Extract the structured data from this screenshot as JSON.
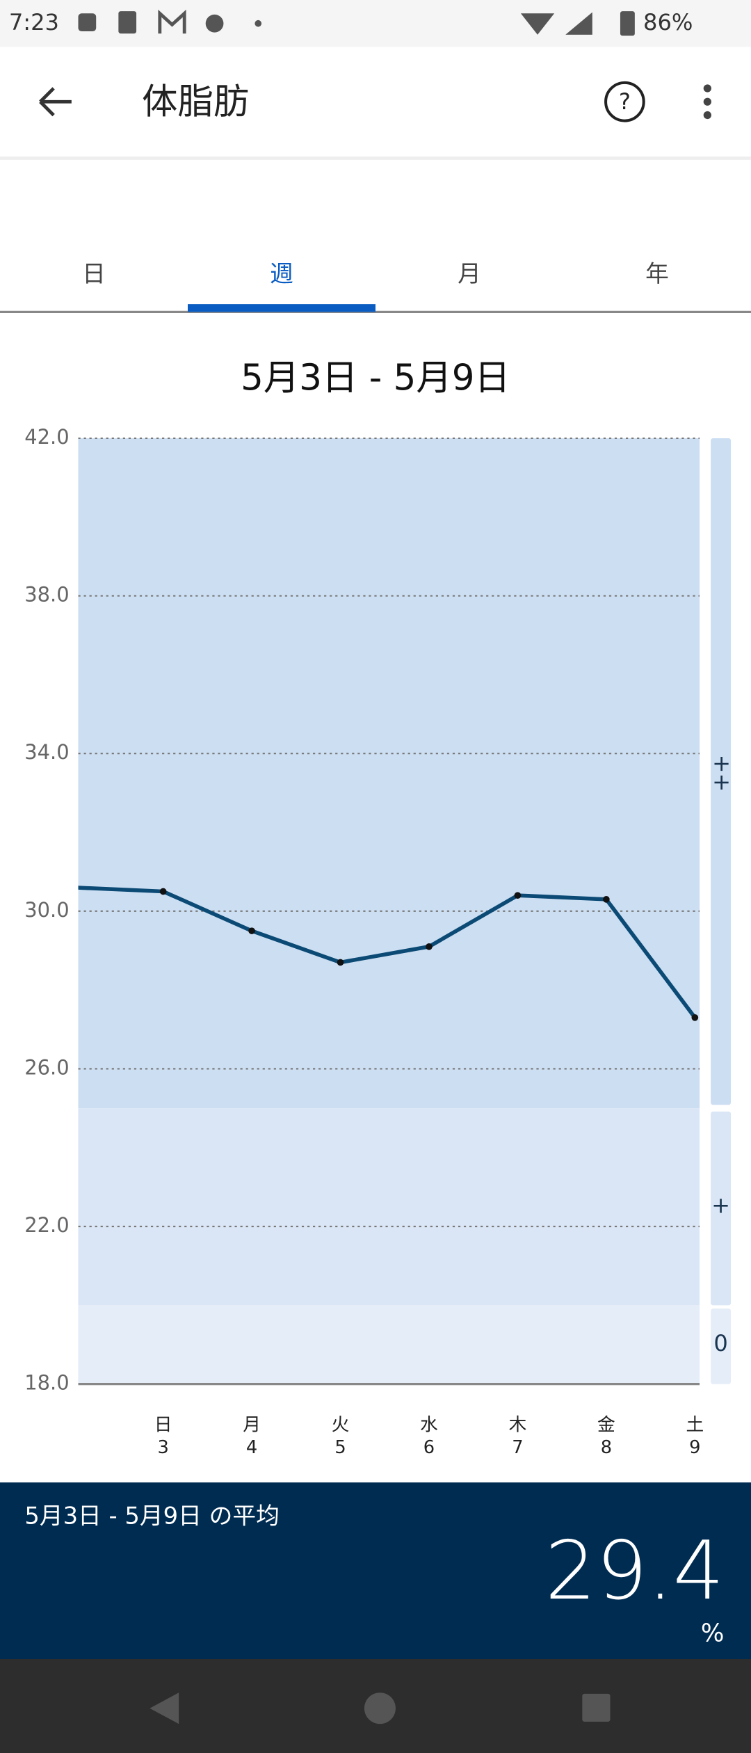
{
  "status_bar": {
    "time": "7:23",
    "battery": "86%"
  },
  "app_bar": {
    "title": "体脂肪"
  },
  "tabs": [
    "日",
    "週",
    "月",
    "年"
  ],
  "chart_data": {
    "type": "line",
    "title": "5月3日 - 5月9日",
    "categories": [
      null,
      "日",
      "月",
      "火",
      "水",
      "木",
      "金",
      "土"
    ],
    "days": [
      null,
      "3",
      "4",
      "5",
      "6",
      "7",
      "8",
      "9"
    ],
    "series": [
      {
        "color": "#0b4a75",
        "values": [
          30.6,
          30.5,
          29.5,
          28.7,
          29.1,
          30.4,
          30.3,
          27.3
        ]
      }
    ],
    "ylim": [
      18,
      42
    ],
    "yticks": [
      {
        "value": 18,
        "label": "18.0"
      },
      {
        "value": 22,
        "label": "22.0"
      },
      {
        "value": 26,
        "label": "26.0"
      },
      {
        "value": 30,
        "label": "30.0"
      },
      {
        "value": 34,
        "label": "34.0"
      },
      {
        "value": 38,
        "label": "38.0"
      },
      {
        "value": 42,
        "label": "42.0"
      }
    ],
    "grid": true,
    "bands": [
      {
        "from": 25,
        "to": 42,
        "label": "++",
        "color": "#ccdef2"
      },
      {
        "from": 20,
        "to": 25,
        "label": "+",
        "color": "#dae6f5"
      },
      {
        "from": 18,
        "to": 20,
        "label": "0",
        "color": "#e5edf8"
      }
    ]
  },
  "summary": {
    "label": "5月3日 - 5月9日 の平均",
    "value": "29.4",
    "unit": "%"
  }
}
